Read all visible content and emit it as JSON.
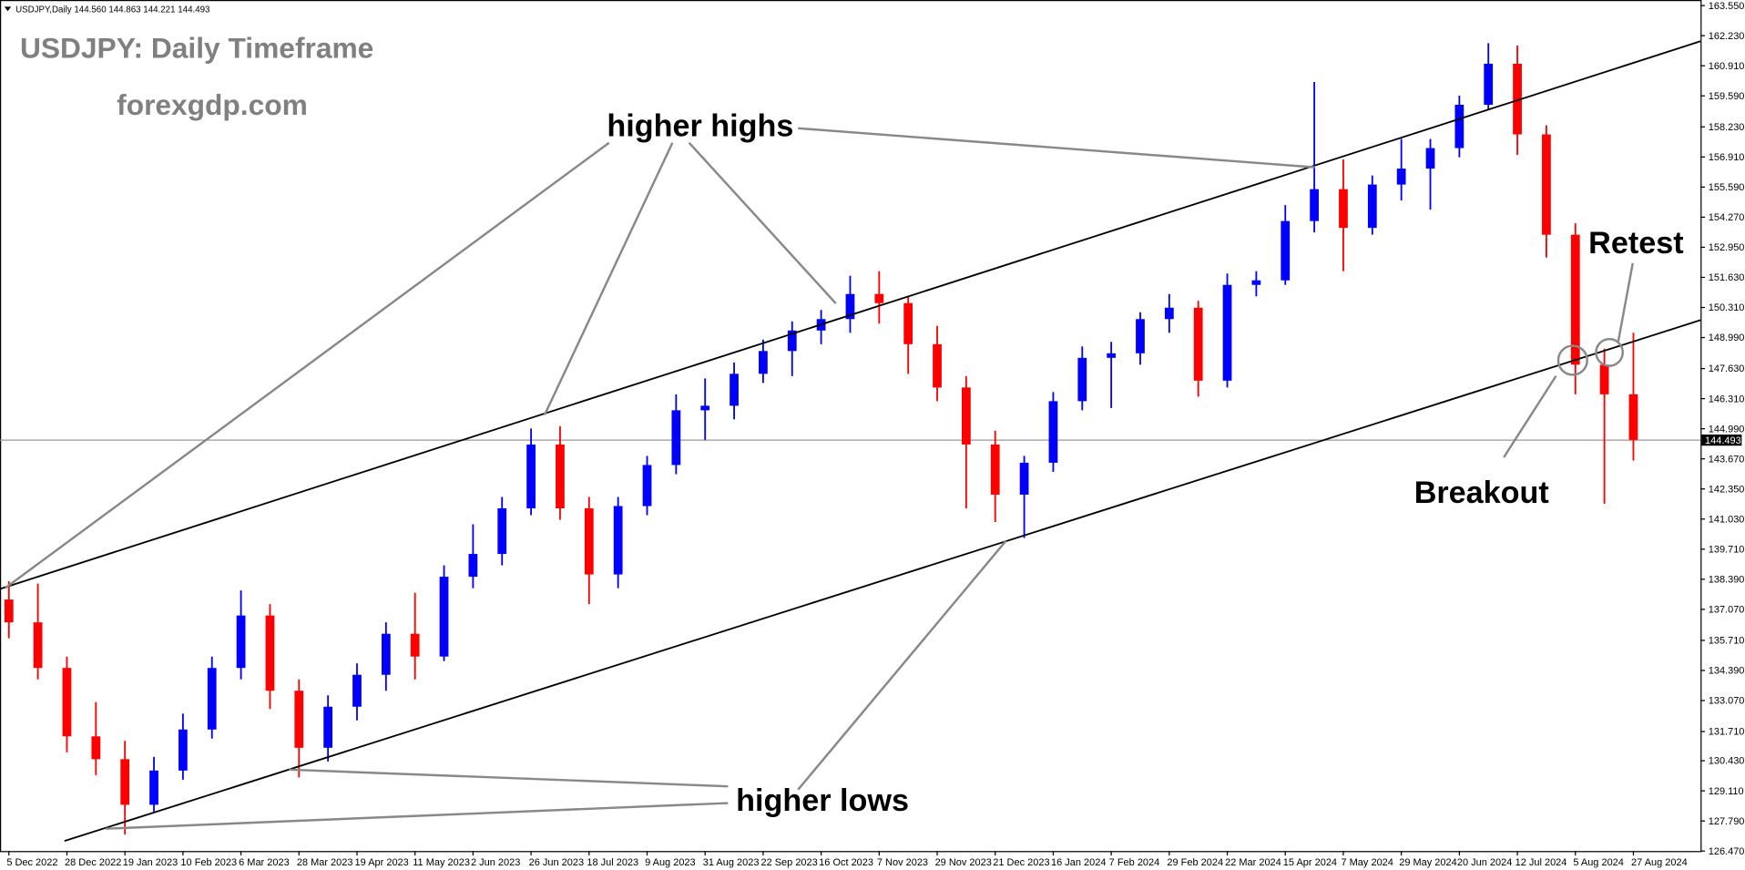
{
  "chart_data": {
    "type": "candlestick",
    "title": "USDJPY: Daily Timeframe",
    "subtitle": "forexgdp.com",
    "symbol_info": "USDJPY,Daily 144.560 144.863 144.221 144.493",
    "categories": [
      "5 Dec 2022",
      null,
      "28 Dec 2022",
      null,
      "19 Jan 2023",
      null,
      "10 Feb 2023",
      null,
      "6 Mar 2023",
      null,
      "28 Mar 2023",
      null,
      "19 Apr 2023",
      null,
      "11 May 2023",
      null,
      "2 Jun 2023",
      null,
      "26 Jun 2023",
      null,
      "18 Jul 2023",
      null,
      "9 Aug 2023",
      null,
      "31 Aug 2023",
      null,
      "22 Sep 2023",
      null,
      "16 Oct 2023",
      null,
      "7 Nov 2023",
      null,
      "29 Nov 2023",
      null,
      "21 Dec 2023",
      null,
      "16 Jan 2024",
      null,
      "7 Feb 2024",
      null,
      "29 Feb 2024",
      null,
      "22 Mar 2024",
      null,
      "15 Apr 2024",
      null,
      "7 May 2024",
      null,
      "29 May 2024",
      null,
      "20 Jun 2024",
      null,
      "12 Jul 2024",
      null,
      "5 Aug 2024",
      null,
      "27 Aug 2024"
    ],
    "open": [
      137.5,
      136.5,
      134.5,
      131.5,
      130.5,
      128.5,
      130.0,
      131.8,
      134.5,
      136.8,
      133.5,
      131.0,
      132.8,
      134.2,
      136.0,
      135.0,
      138.5,
      139.5,
      141.5,
      144.3,
      141.5,
      138.6,
      141.6,
      143.4,
      145.8,
      146.0,
      147.4,
      148.4,
      149.3,
      149.8,
      150.9,
      150.5,
      148.7,
      146.8,
      144.3,
      142.1,
      143.5,
      146.2,
      148.1,
      148.3,
      149.8,
      150.3,
      147.1,
      151.3,
      151.5,
      154.1,
      155.5,
      153.8,
      155.7,
      156.4,
      157.3,
      159.2,
      161.0,
      157.9,
      153.5,
      147.8,
      146.5
    ],
    "high": [
      138.3,
      138.2,
      135.0,
      133.0,
      131.3,
      130.6,
      132.5,
      135.0,
      137.9,
      137.3,
      134.0,
      133.3,
      134.7,
      136.5,
      137.8,
      139.0,
      140.8,
      142.0,
      145.0,
      145.1,
      142.0,
      142.0,
      143.8,
      146.5,
      147.2,
      147.9,
      148.9,
      149.7,
      150.2,
      151.7,
      151.9,
      150.8,
      149.5,
      147.3,
      144.9,
      143.8,
      146.6,
      148.6,
      148.8,
      150.1,
      150.9,
      150.6,
      151.8,
      151.9,
      154.8,
      160.2,
      156.8,
      156.1,
      157.7,
      157.7,
      159.6,
      161.9,
      161.8,
      158.3,
      154.0,
      148.5,
      149.2
    ],
    "low": [
      135.8,
      134.0,
      130.8,
      129.8,
      127.2,
      128.2,
      129.6,
      131.4,
      134.0,
      132.7,
      129.7,
      130.4,
      132.2,
      133.5,
      134.0,
      134.8,
      138.0,
      139.0,
      141.2,
      141.0,
      137.3,
      138.0,
      141.2,
      143.0,
      144.5,
      145.4,
      147.0,
      147.3,
      148.7,
      149.2,
      149.6,
      147.4,
      146.2,
      141.5,
      140.9,
      140.2,
      143.1,
      145.8,
      145.9,
      147.8,
      149.2,
      146.4,
      146.8,
      150.8,
      151.3,
      153.6,
      151.9,
      153.5,
      155.0,
      154.6,
      156.9,
      159.0,
      157.0,
      152.5,
      146.5,
      141.7,
      143.6
    ],
    "close": [
      136.5,
      134.5,
      131.5,
      130.5,
      128.5,
      130.0,
      131.8,
      134.5,
      136.8,
      133.5,
      131.0,
      132.8,
      134.2,
      136.0,
      135.0,
      138.5,
      139.5,
      141.5,
      144.3,
      141.5,
      138.6,
      141.6,
      143.4,
      145.8,
      146.0,
      147.4,
      148.4,
      149.3,
      149.8,
      150.9,
      150.5,
      148.7,
      146.8,
      144.3,
      142.1,
      143.5,
      146.2,
      148.1,
      148.3,
      149.8,
      150.3,
      147.1,
      151.3,
      151.5,
      154.1,
      155.5,
      153.8,
      155.7,
      156.4,
      157.3,
      159.2,
      161.0,
      157.9,
      153.5,
      147.8,
      146.5,
      144.5
    ],
    "up_color": "#0000ff",
    "down_color": "#ff0000",
    "last_price": 144.493,
    "ylim": [
      126.47,
      163.55
    ],
    "yticks": [
      {
        "value": 163.55,
        "label": "163.550"
      },
      {
        "value": 162.23,
        "label": "162.230"
      },
      {
        "value": 160.91,
        "label": "160.910"
      },
      {
        "value": 159.59,
        "label": "159.590"
      },
      {
        "value": 158.23,
        "label": "158.230"
      },
      {
        "value": 156.91,
        "label": "156.910"
      },
      {
        "value": 155.59,
        "label": "155.590"
      },
      {
        "value": 154.27,
        "label": "154.270"
      },
      {
        "value": 152.95,
        "label": "152.950"
      },
      {
        "value": 151.63,
        "label": "151.630"
      },
      {
        "value": 150.31,
        "label": "150.310"
      },
      {
        "value": 148.99,
        "label": "148.990"
      },
      {
        "value": 147.63,
        "label": "147.630"
      },
      {
        "value": 146.31,
        "label": "146.310"
      },
      {
        "value": 144.99,
        "label": "144.990"
      },
      {
        "value": 143.67,
        "label": "143.670"
      },
      {
        "value": 142.35,
        "label": "142.350"
      },
      {
        "value": 141.03,
        "label": "141.030"
      },
      {
        "value": 139.71,
        "label": "139.710"
      },
      {
        "value": 138.39,
        "label": "138.390"
      },
      {
        "value": 137.07,
        "label": "137.070"
      },
      {
        "value": 135.71,
        "label": "135.710"
      },
      {
        "value": 134.39,
        "label": "134.390"
      },
      {
        "value": 133.07,
        "label": "133.070"
      },
      {
        "value": 131.71,
        "label": "131.710"
      },
      {
        "value": 130.43,
        "label": "130.430"
      },
      {
        "value": 129.11,
        "label": "129.110"
      },
      {
        "value": 127.79,
        "label": "127.790"
      },
      {
        "value": 126.47,
        "label": "126.470"
      }
    ],
    "annotations": {
      "higher_highs": "higher highs",
      "higher_lows": "higher lows",
      "breakout": "Breakout",
      "retest": "Retest"
    }
  }
}
